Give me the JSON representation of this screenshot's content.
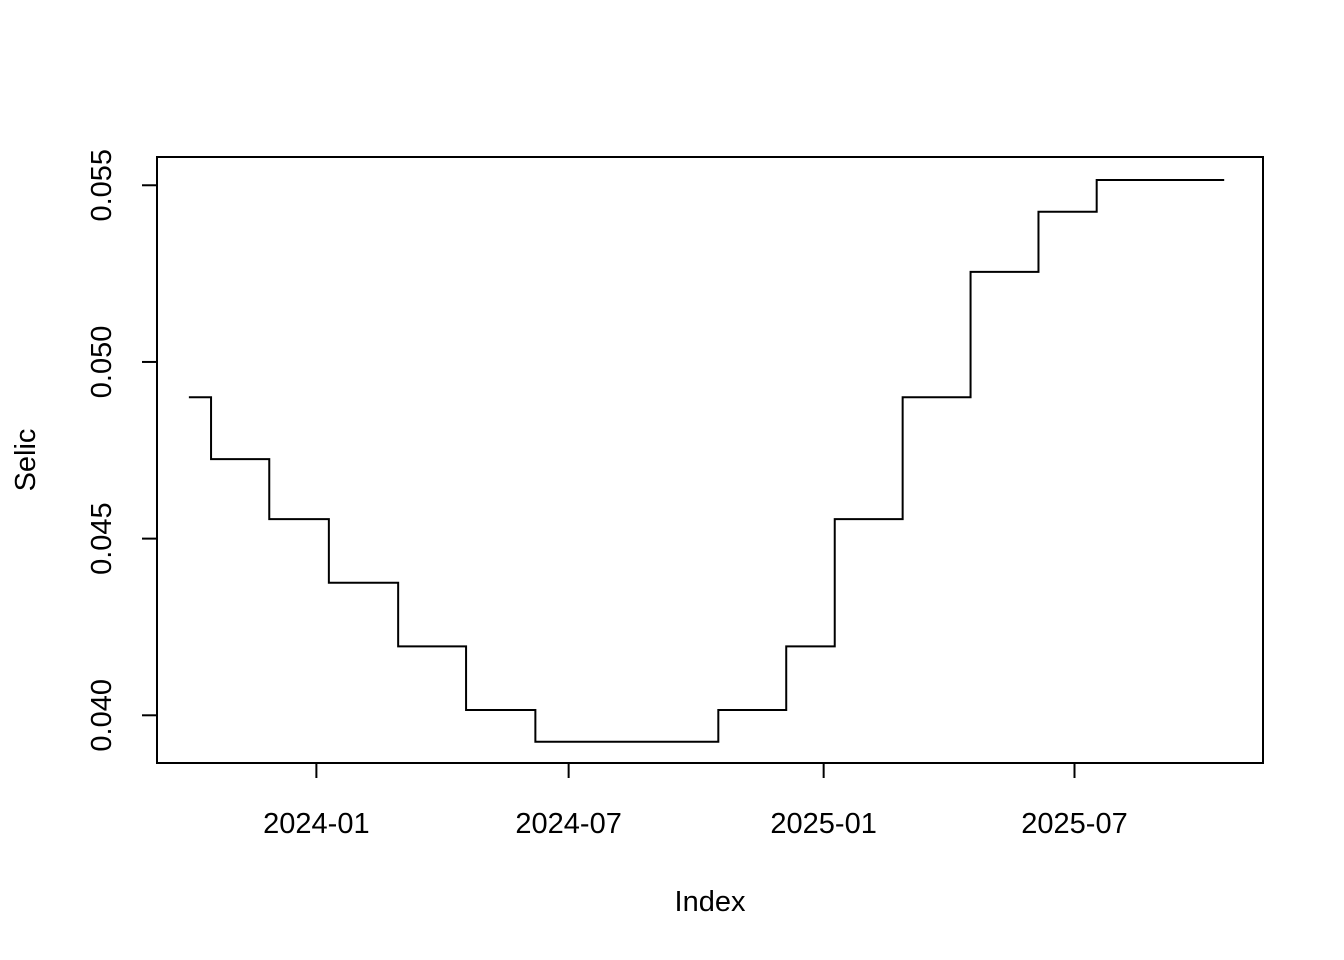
{
  "chart_data": {
    "type": "line",
    "line_style": "step",
    "xlabel": "Index",
    "ylabel": "Selic",
    "x_type": "date",
    "xlim": [
      "2023-09-08",
      "2025-11-14"
    ],
    "ylim": [
      0.03865,
      0.0558
    ],
    "x_ticks": [
      {
        "date": "2024-01-01",
        "label": "2024-01"
      },
      {
        "date": "2024-07-01",
        "label": "2024-07"
      },
      {
        "date": "2025-01-01",
        "label": "2025-01"
      },
      {
        "date": "2025-07-01",
        "label": "2025-07"
      }
    ],
    "y_ticks": [
      {
        "value": 0.04,
        "label": "0.040"
      },
      {
        "value": 0.045,
        "label": "0.045"
      },
      {
        "value": 0.05,
        "label": "0.050"
      },
      {
        "value": 0.055,
        "label": "0.055"
      }
    ],
    "grid": false,
    "legend": "none",
    "series": [
      {
        "color": "#000000",
        "points": [
          {
            "x": "2023-10-01",
            "y": 0.049
          },
          {
            "x": "2023-10-17",
            "y": 0.04725
          },
          {
            "x": "2023-11-28",
            "y": 0.04555
          },
          {
            "x": "2024-01-10",
            "y": 0.04375
          },
          {
            "x": "2024-02-29",
            "y": 0.04195
          },
          {
            "x": "2024-04-18",
            "y": 0.04015
          },
          {
            "x": "2024-06-07",
            "y": 0.03925
          },
          {
            "x": "2024-10-17",
            "y": 0.04015
          },
          {
            "x": "2024-12-05",
            "y": 0.04195
          },
          {
            "x": "2025-01-09",
            "y": 0.04555
          },
          {
            "x": "2025-02-27",
            "y": 0.049
          },
          {
            "x": "2025-04-17",
            "y": 0.05255
          },
          {
            "x": "2025-06-05",
            "y": 0.05425
          },
          {
            "x": "2025-07-17",
            "y": 0.05515
          },
          {
            "x": "2025-10-17",
            "y": 0.05515
          }
        ]
      }
    ]
  }
}
